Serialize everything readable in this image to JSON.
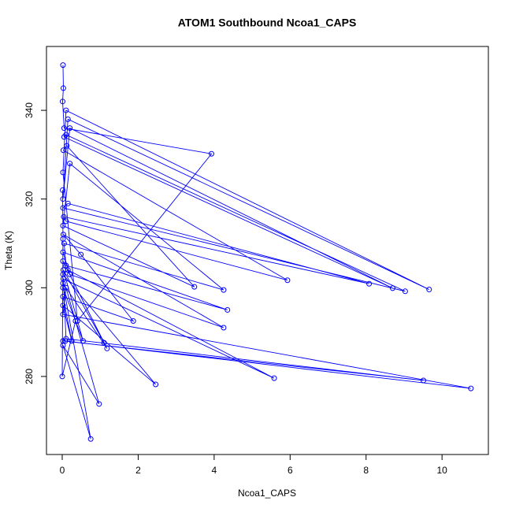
{
  "chart_data": {
    "type": "line",
    "title": "ATOM1 Southbound Ncoa1_CAPS",
    "x_label": "Ncoa1_CAPS",
    "y_label": "Theta (K)",
    "x": [
      0.02,
      0.03,
      0.01,
      0.05,
      3.93,
      0.4,
      0.02,
      0.1,
      9.66,
      0.15,
      0.02,
      0.2,
      8.7,
      0.05,
      0.1,
      9.03,
      0.02,
      0.15,
      8.08,
      0.04,
      0.1,
      5.93,
      0.03,
      0.12,
      3.48,
      0.02,
      0.2,
      4.25,
      0.05,
      0.1,
      4.35,
      0.02,
      0.2,
      4.25,
      0.03,
      0.49,
      1.87,
      0.02,
      0.25,
      0.02,
      2.46,
      0.02,
      0.15,
      5.58,
      0.03,
      0.1,
      9.51,
      0.02,
      0.08,
      10.76,
      0.02,
      0.1,
      0.97,
      0.02,
      0.75,
      0.02,
      1.18,
      0.02,
      1.1,
      0.03,
      0.55,
      0.02,
      0.35,
      0.0,
      0.02,
      0.01
    ],
    "series": [
      {
        "color": "#0000ff",
        "values": [
          350.2,
          345,
          342,
          336,
          330.2,
          292.5,
          326,
          340,
          299.6,
          338,
          320,
          336,
          299.9,
          334,
          334.5,
          299.2,
          318,
          319,
          300.9,
          316,
          315,
          301.7,
          331,
          332,
          300.2,
          314,
          328,
          299.5,
          310,
          305,
          295,
          308,
          303,
          291,
          312,
          307.5,
          292.5,
          298,
          288,
          296,
          278.2,
          303,
          304,
          279.6,
          302,
          288.5,
          279.1,
          288,
          288,
          277.3,
          294,
          300,
          273.8,
          287,
          265.9,
          301,
          286.3,
          306,
          287.6,
          304,
          288,
          300,
          292.5,
          280,
          311,
          322
        ]
      }
    ],
    "xlim": [
      -0.415,
      11.22
    ],
    "ylim": [
      262.4,
      354.4
    ],
    "xticks": [
      0,
      2,
      4,
      6,
      8,
      10
    ],
    "yticks": [
      280,
      300,
      320,
      340
    ]
  }
}
